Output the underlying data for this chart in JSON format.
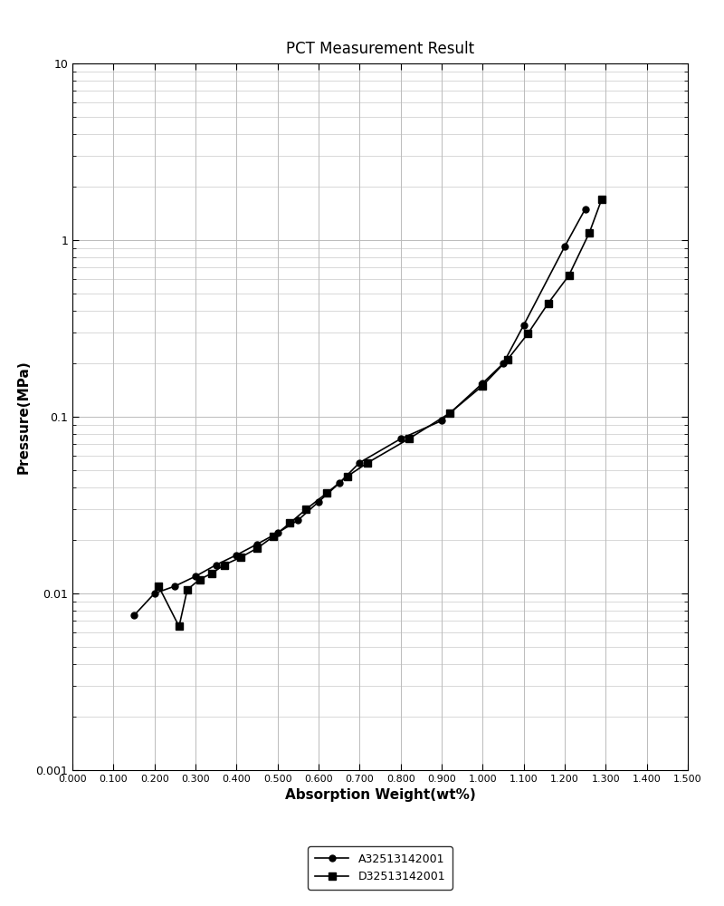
{
  "title": "PCT Measurement Result",
  "xlabel": "Absorption Weight(wt%)",
  "ylabel": "Pressure(MPa)",
  "xlim": [
    0.0,
    1.5
  ],
  "ylim_log": [
    0.001,
    10
  ],
  "xticks": [
    0.0,
    0.1,
    0.2,
    0.3,
    0.4,
    0.5,
    0.6,
    0.7,
    0.8,
    0.9,
    1.0,
    1.1,
    1.2,
    1.3,
    1.4,
    1.5
  ],
  "series_A": {
    "label": "A32513142001",
    "color": "#000000",
    "marker": "o",
    "markersize": 5,
    "linewidth": 1.2,
    "x": [
      0.15,
      0.2,
      0.25,
      0.3,
      0.35,
      0.4,
      0.45,
      0.5,
      0.55,
      0.6,
      0.65,
      0.7,
      0.8,
      0.9,
      1.0,
      1.05,
      1.1,
      1.2,
      1.25
    ],
    "y": [
      0.0075,
      0.01,
      0.011,
      0.0125,
      0.0145,
      0.0165,
      0.019,
      0.022,
      0.026,
      0.033,
      0.042,
      0.055,
      0.075,
      0.095,
      0.155,
      0.2,
      0.33,
      0.92,
      1.5
    ]
  },
  "series_D": {
    "label": "D32513142001",
    "color": "#000000",
    "marker": "s",
    "markersize": 6,
    "linewidth": 1.2,
    "x": [
      0.21,
      0.26,
      0.28,
      0.31,
      0.34,
      0.37,
      0.41,
      0.45,
      0.49,
      0.53,
      0.57,
      0.62,
      0.67,
      0.72,
      0.82,
      0.92,
      1.0,
      1.06,
      1.11,
      1.16,
      1.21,
      1.26,
      1.29
    ],
    "y": [
      0.011,
      0.0065,
      0.0105,
      0.012,
      0.013,
      0.0145,
      0.016,
      0.018,
      0.021,
      0.025,
      0.03,
      0.037,
      0.046,
      0.055,
      0.075,
      0.105,
      0.15,
      0.21,
      0.295,
      0.44,
      0.63,
      1.1,
      1.7
    ]
  },
  "background_color": "#ffffff",
  "grid_color": "#bbbbbb"
}
